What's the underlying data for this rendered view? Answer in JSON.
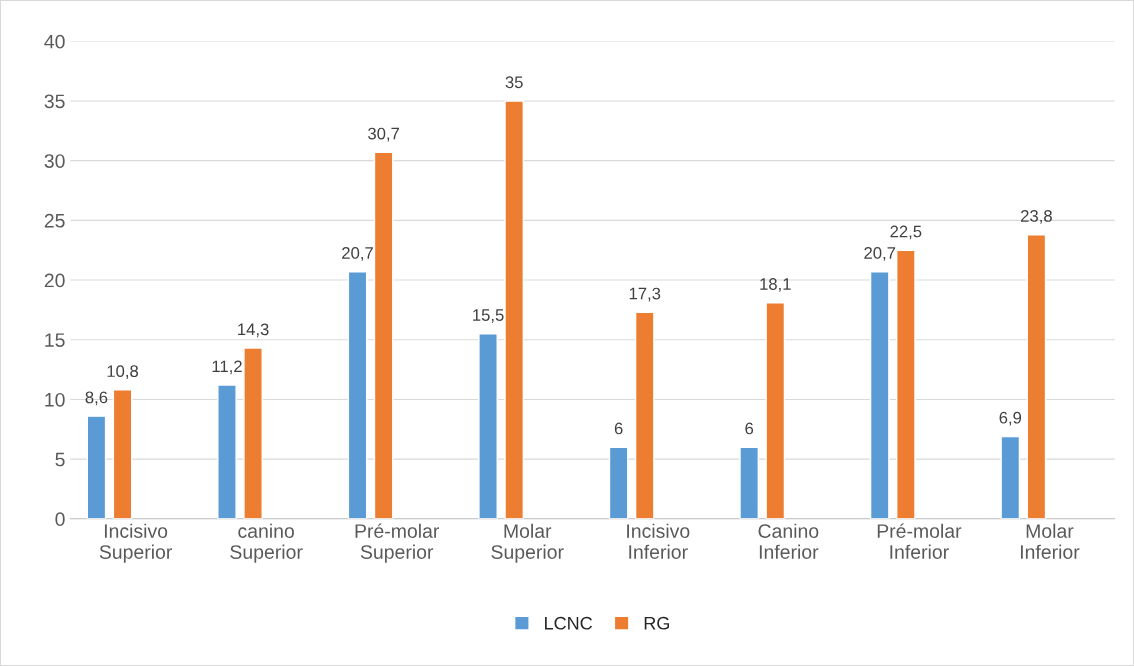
{
  "chart_data": {
    "type": "bar",
    "categories": [
      "Incisivo\nSuperior",
      "canino\nSuperior",
      "Pré-molar\nSuperior",
      "Molar\nSuperior",
      "Incisivo\nInferior",
      "Canino\nInferior",
      "Pré-molar\nInferior",
      "Molar\nInferior"
    ],
    "series": [
      {
        "name": "LCNC",
        "color": "#5b9bd5",
        "values": [
          8.6,
          11.2,
          20.7,
          15.5,
          6,
          6,
          20.7,
          6.9
        ],
        "value_labels": [
          "8,6",
          "11,2",
          "20,7",
          "15,5",
          "6",
          "6",
          "20,7",
          "6,9"
        ]
      },
      {
        "name": "RG",
        "color": "#ed7d31",
        "values": [
          10.8,
          14.3,
          30.7,
          35,
          17.3,
          18.1,
          22.5,
          23.8
        ],
        "value_labels": [
          "10,8",
          "14,3",
          "30,7",
          "35",
          "17,3",
          "18,1",
          "22,5",
          "23,8"
        ]
      }
    ],
    "ylim": [
      0,
      40
    ],
    "yticks": [
      0,
      5,
      10,
      15,
      20,
      25,
      30,
      35,
      40
    ],
    "grid": "y",
    "legend": "bottom"
  }
}
